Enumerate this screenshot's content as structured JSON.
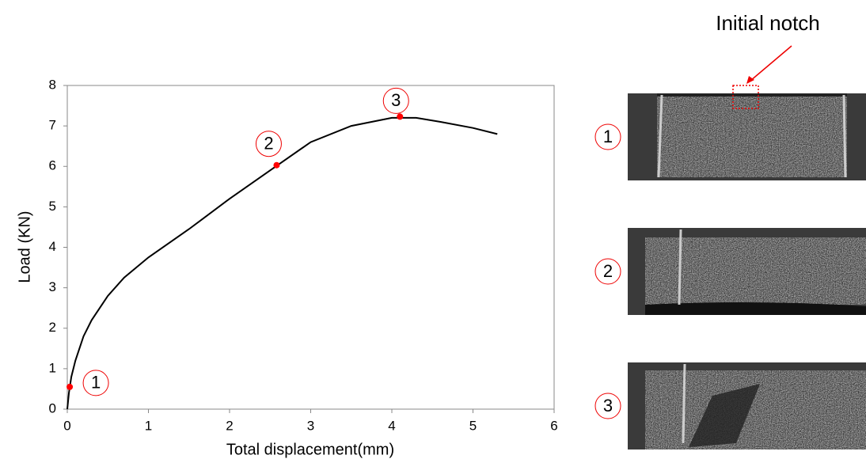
{
  "chart_data": {
    "type": "line",
    "x_label": "Total displacement(mm)",
    "y_label": "Load (KN)",
    "x": [
      0,
      0.02,
      0.05,
      0.1,
      0.2,
      0.3,
      0.5,
      0.7,
      1,
      1.5,
      2,
      2.5,
      3,
      3.5,
      4,
      4.3,
      4.6,
      5,
      5.3
    ],
    "values": [
      0,
      0.4,
      0.8,
      1.2,
      1.8,
      2.2,
      2.8,
      3.25,
      3.75,
      4.45,
      5.2,
      5.9,
      6.6,
      7.0,
      7.2,
      7.2,
      7.1,
      6.95,
      6.8
    ],
    "color": "#000000",
    "points": {
      "x": [
        0.03,
        2.58,
        4.1
      ],
      "values": [
        0.55,
        6.03,
        7.23
      ],
      "labels": [
        "1",
        "2",
        "3"
      ],
      "color": "#ff0000"
    },
    "xlim": [
      0,
      6
    ],
    "xticks": [
      0,
      1,
      2,
      3,
      4,
      5,
      6
    ],
    "ylim": [
      0,
      8
    ],
    "yticks": [
      0,
      1,
      2,
      3,
      4,
      5,
      6,
      7,
      8
    ],
    "annotation": "Initial notch",
    "panels": [
      {
        "label": "1"
      },
      {
        "label": "2"
      },
      {
        "label": "3"
      }
    ]
  }
}
